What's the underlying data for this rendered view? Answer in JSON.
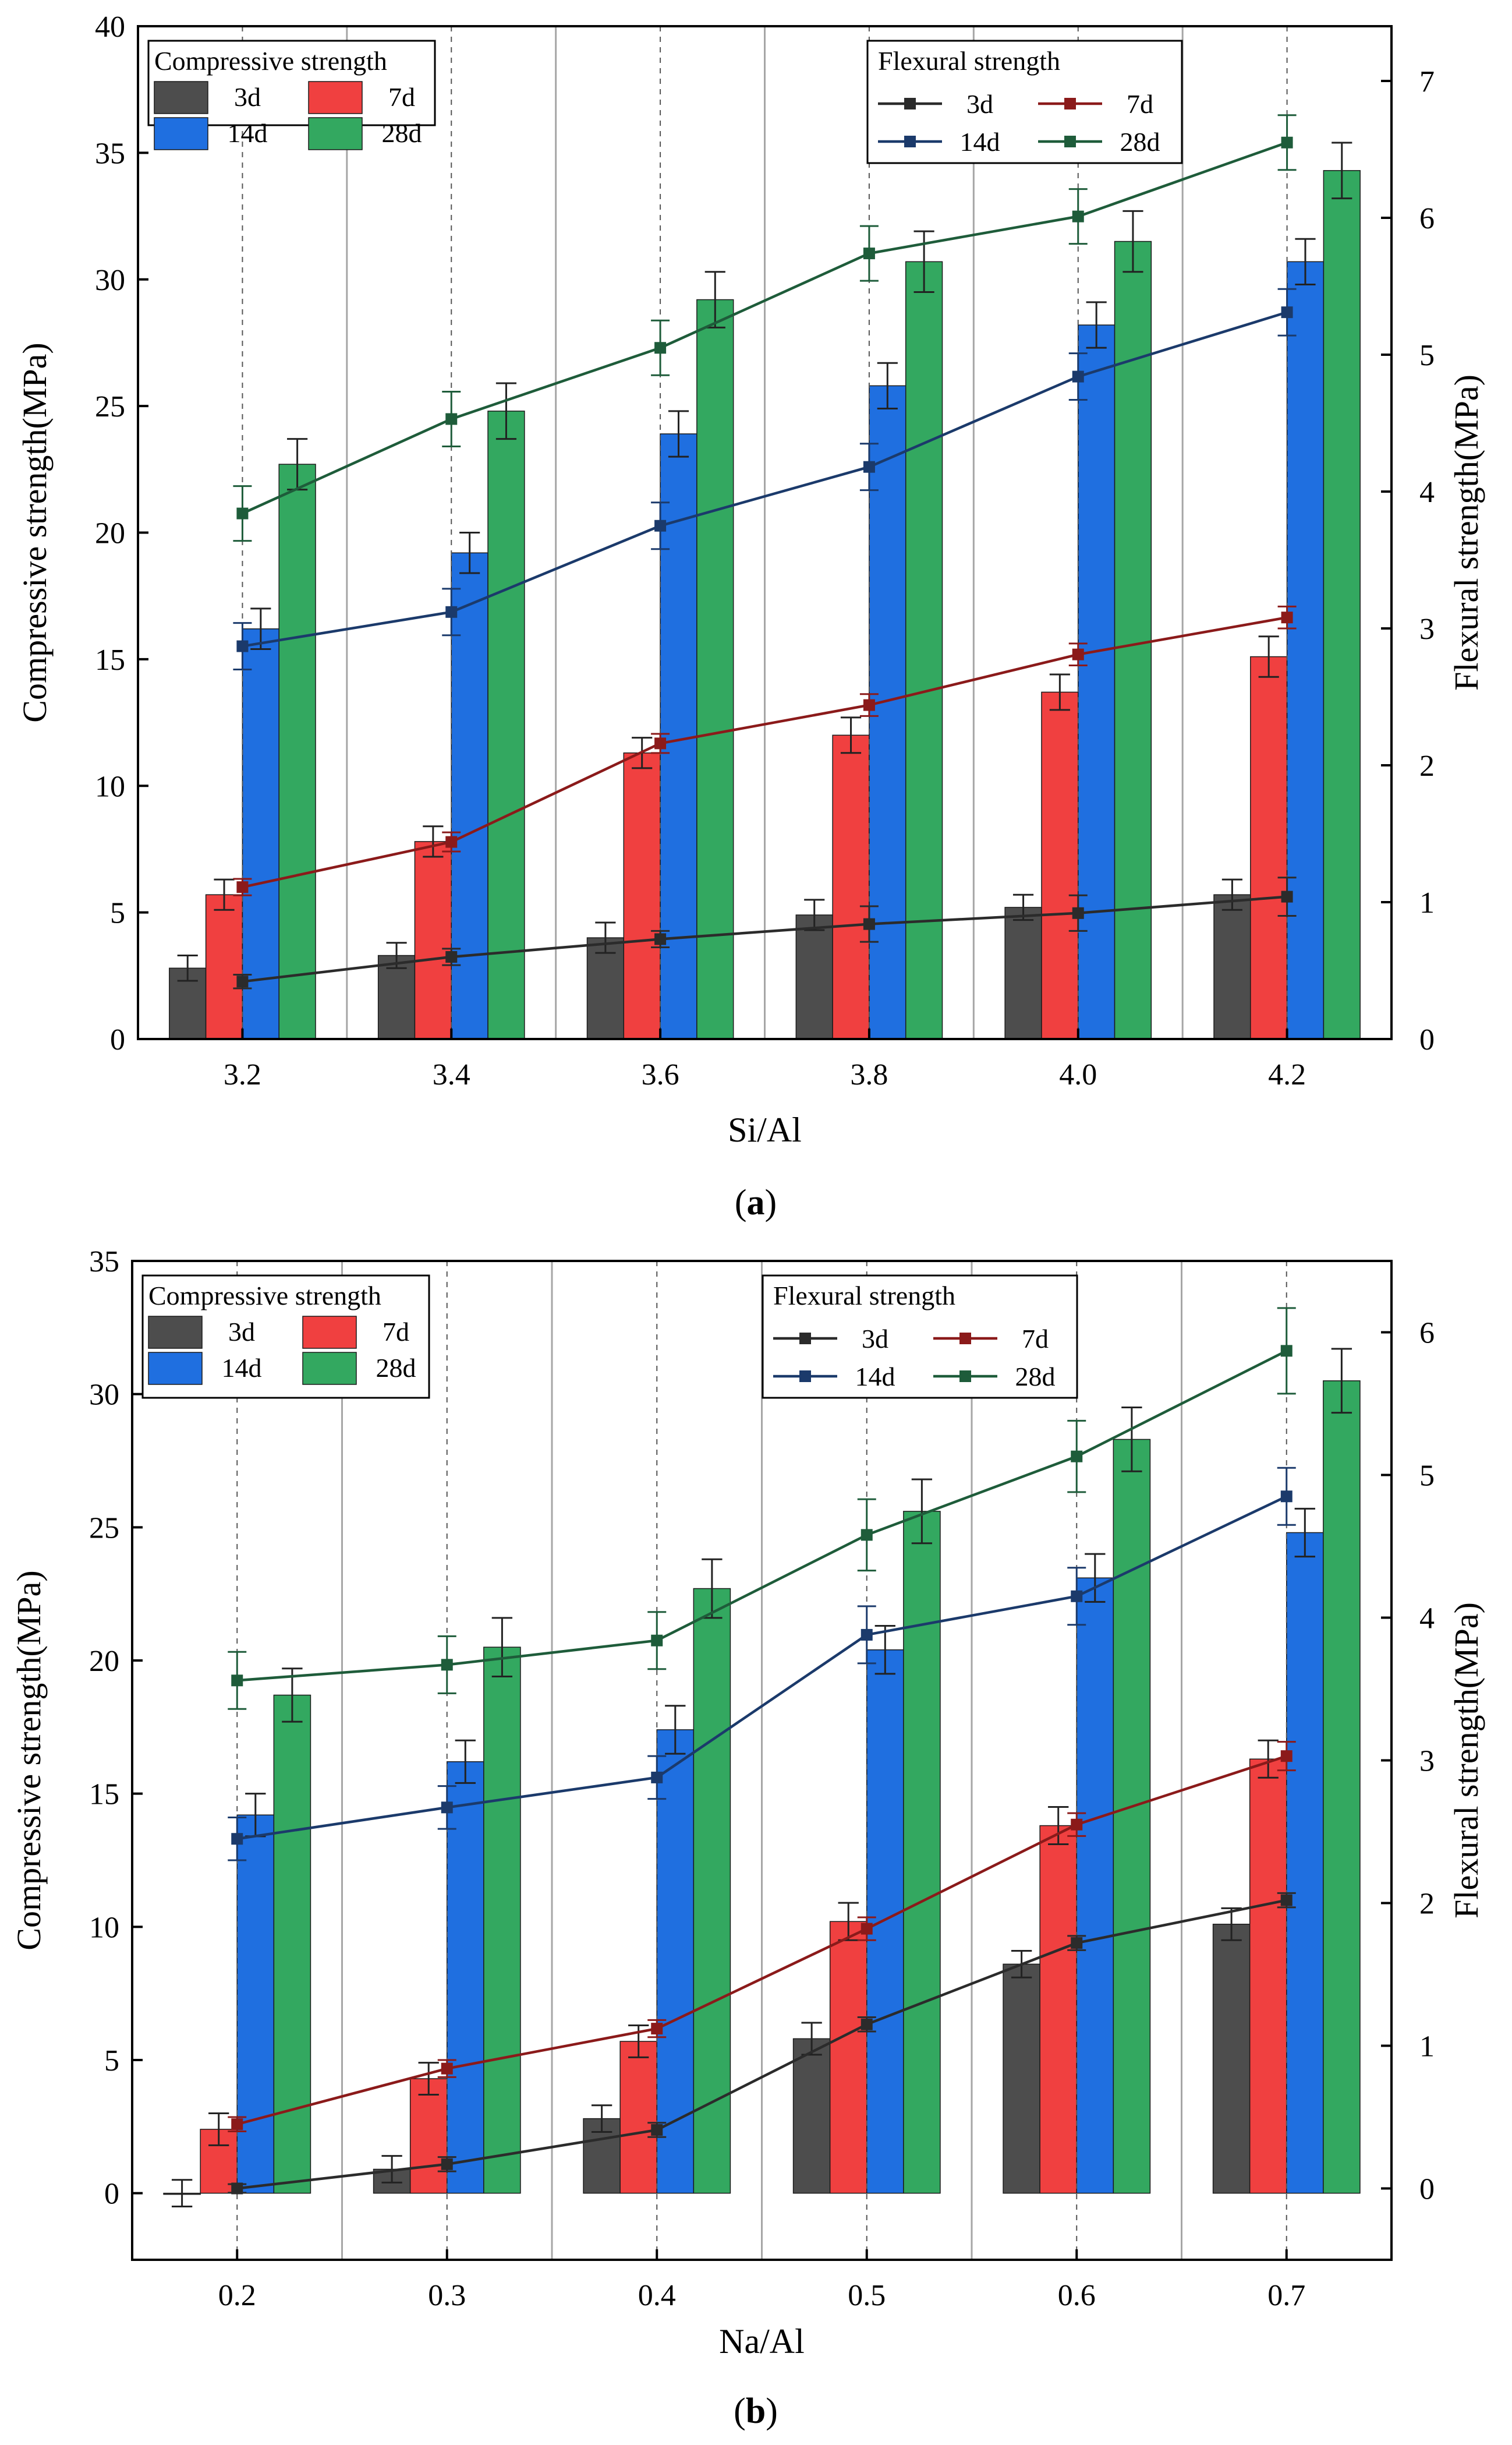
{
  "chart_data": [
    {
      "panel": "(a)",
      "panel_letter": "a",
      "type": "bar+line",
      "xlabel": "Si/Al",
      "ylabel_left": "Compressive strength(MPa)",
      "ylabel_right": "Flexural strength(MPa)",
      "categories": [
        "3.2",
        "3.4",
        "3.6",
        "3.8",
        "4.0",
        "4.2"
      ],
      "ylim_left": [
        0,
        40
      ],
      "yticks_left": [
        0,
        5,
        10,
        15,
        20,
        25,
        30,
        35,
        40
      ],
      "ylim_right": [
        0,
        7.4
      ],
      "yticks_right": [
        0,
        1,
        2,
        3,
        4,
        5,
        6,
        7
      ],
      "legend_bar_title": "Compressive strength",
      "legend_line_title": "Flexural strength",
      "bar_series": [
        {
          "name": "3d",
          "color": "#4d4d4d",
          "values": [
            2.8,
            3.3,
            4.0,
            4.9,
            5.2,
            5.7
          ],
          "errors": [
            0.5,
            0.5,
            0.6,
            0.6,
            0.5,
            0.6
          ]
        },
        {
          "name": "7d",
          "color": "#f04040",
          "values": [
            5.7,
            7.8,
            11.3,
            12.0,
            13.7,
            15.1
          ],
          "errors": [
            0.6,
            0.6,
            0.6,
            0.7,
            0.7,
            0.8
          ]
        },
        {
          "name": "14d",
          "color": "#1f6fe0",
          "values": [
            16.2,
            19.2,
            23.9,
            25.8,
            28.2,
            30.7
          ],
          "errors": [
            0.8,
            0.8,
            0.9,
            0.9,
            0.9,
            0.9
          ]
        },
        {
          "name": "28d",
          "color": "#33a860",
          "values": [
            22.7,
            24.8,
            29.2,
            30.7,
            31.5,
            34.3
          ],
          "errors": [
            1.0,
            1.1,
            1.1,
            1.2,
            1.2,
            1.1
          ]
        }
      ],
      "line_series": [
        {
          "name": "3d",
          "color": "#2b2b2b",
          "values": [
            0.42,
            0.6,
            0.73,
            0.84,
            0.92,
            1.04
          ],
          "errors": [
            0.05,
            0.06,
            0.06,
            0.13,
            0.13,
            0.14
          ]
        },
        {
          "name": "7d",
          "color": "#8b1a1a",
          "values": [
            1.11,
            1.44,
            2.16,
            2.44,
            2.81,
            3.08
          ],
          "errors": [
            0.06,
            0.07,
            0.07,
            0.08,
            0.08,
            0.08
          ]
        },
        {
          "name": "14d",
          "color": "#1b3a6b",
          "values": [
            2.87,
            3.12,
            3.75,
            4.18,
            4.84,
            5.31
          ],
          "errors": [
            0.17,
            0.17,
            0.17,
            0.17,
            0.17,
            0.17
          ]
        },
        {
          "name": "28d",
          "color": "#1e5c3a",
          "values": [
            3.84,
            4.53,
            5.05,
            5.74,
            6.01,
            6.55
          ],
          "errors": [
            0.2,
            0.2,
            0.2,
            0.2,
            0.2,
            0.2
          ]
        }
      ]
    },
    {
      "panel": "(b)",
      "panel_letter": "b",
      "type": "bar+line",
      "xlabel": "Na/Al",
      "ylabel_left": "Compressive strength(MPa)",
      "ylabel_right": "Flexural strength(MPa)",
      "categories": [
        "0.2",
        "0.3",
        "0.4",
        "0.5",
        "0.6",
        "0.7"
      ],
      "ylim_left": [
        -2.5,
        35
      ],
      "yticks_left": [
        0,
        5,
        10,
        15,
        20,
        25,
        30,
        35
      ],
      "ylim_right": [
        -0.5,
        6.5
      ],
      "yticks_right": [
        0,
        1,
        2,
        3,
        4,
        5,
        6
      ],
      "legend_bar_title": "Compressive strength",
      "legend_line_title": "Flexural strength",
      "bar_series": [
        {
          "name": "3d",
          "color": "#4d4d4d",
          "values": [
            0.0,
            0.9,
            2.8,
            5.8,
            8.6,
            10.1
          ],
          "errors": [
            0.5,
            0.5,
            0.5,
            0.6,
            0.5,
            0.6
          ]
        },
        {
          "name": "7d",
          "color": "#f04040",
          "values": [
            2.4,
            4.3,
            5.7,
            10.2,
            13.8,
            16.3
          ],
          "errors": [
            0.6,
            0.6,
            0.6,
            0.7,
            0.7,
            0.7
          ]
        },
        {
          "name": "14d",
          "color": "#1f6fe0",
          "values": [
            14.2,
            16.2,
            17.4,
            20.4,
            23.1,
            24.8
          ],
          "errors": [
            0.8,
            0.8,
            0.9,
            0.9,
            0.9,
            0.9
          ]
        },
        {
          "name": "28d",
          "color": "#33a860",
          "values": [
            18.7,
            20.5,
            22.7,
            25.6,
            28.3,
            30.5
          ],
          "errors": [
            1.0,
            1.1,
            1.1,
            1.2,
            1.2,
            1.2
          ]
        }
      ],
      "line_series": [
        {
          "name": "3d",
          "color": "#2b2b2b",
          "values": [
            0.0,
            0.17,
            0.41,
            1.15,
            1.72,
            2.02
          ],
          "errors": [
            0.03,
            0.05,
            0.05,
            0.05,
            0.05,
            0.05
          ]
        },
        {
          "name": "7d",
          "color": "#8b1a1a",
          "values": [
            0.45,
            0.84,
            1.12,
            1.82,
            2.55,
            3.03
          ],
          "errors": [
            0.05,
            0.06,
            0.06,
            0.08,
            0.08,
            0.1
          ]
        },
        {
          "name": "14d",
          "color": "#1b3a6b",
          "values": [
            2.45,
            2.67,
            2.88,
            3.88,
            4.15,
            4.85
          ],
          "errors": [
            0.15,
            0.15,
            0.15,
            0.2,
            0.2,
            0.2
          ]
        },
        {
          "name": "28d",
          "color": "#1e5c3a",
          "values": [
            3.56,
            3.67,
            3.84,
            4.58,
            5.13,
            5.87
          ],
          "errors": [
            0.2,
            0.2,
            0.2,
            0.25,
            0.25,
            0.3
          ]
        }
      ]
    }
  ]
}
